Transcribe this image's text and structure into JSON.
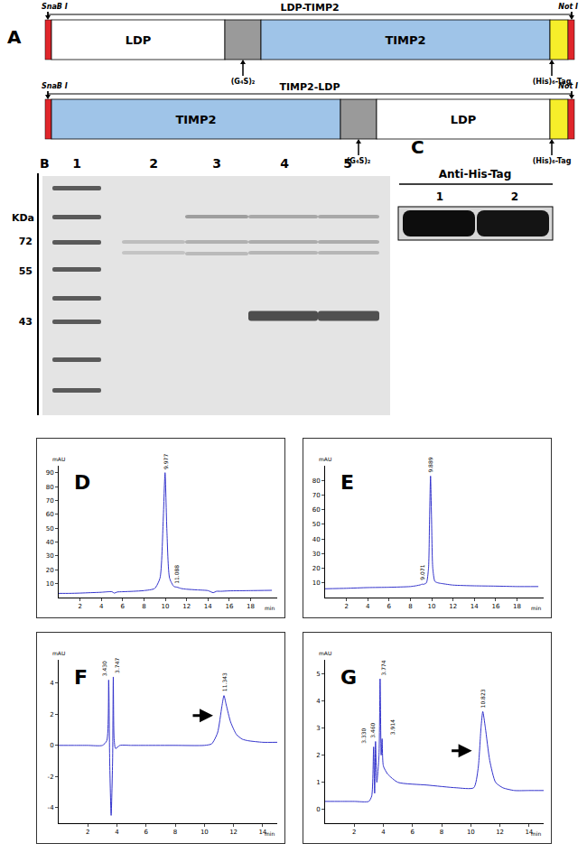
{
  "panel_a": {
    "label": "A",
    "constructs": [
      {
        "name": "LDP-TIMP2",
        "site_left": "SnaB I",
        "site_right": "Not I",
        "segments": [
          {
            "name": "LDP",
            "color": "#ffffff"
          },
          {
            "name": "TIMP2",
            "color": "#9fc4e8"
          }
        ],
        "linker": "(G₄S)₂",
        "tag": "(His)₆-Tag"
      },
      {
        "name": "TIMP2-LDP",
        "site_left": "SnaB I",
        "site_right": "Not I",
        "segments": [
          {
            "name": "TIMP2",
            "color": "#9fc4e8"
          },
          {
            "name": "LDP",
            "color": "#ffffff"
          }
        ],
        "linker": "(G₄S)₂",
        "tag": "(His)₆-Tag"
      }
    ]
  },
  "panel_b": {
    "label": "B",
    "lanes": [
      "1",
      "2",
      "3",
      "4",
      "5"
    ],
    "unit": "KDa",
    "marker_ticks": [
      72,
      55,
      43
    ]
  },
  "panel_c": {
    "label": "C",
    "title": "Anti-His-Tag",
    "lanes": [
      "1",
      "2"
    ]
  },
  "chart_data": [
    {
      "label": "D",
      "type": "line",
      "color": "#3333cc",
      "x": [
        0,
        1,
        2,
        3,
        4,
        5,
        5.2,
        5.5,
        6,
        7,
        8,
        9,
        9.5,
        9.8,
        9.977,
        10.15,
        10.4,
        10.8,
        11.088,
        11.5,
        12,
        13,
        14,
        14.5,
        14.8,
        15.2,
        16,
        18,
        20
      ],
      "values": [
        3,
        3,
        3.2,
        3.5,
        3.8,
        4.2,
        3.2,
        4,
        4.2,
        4.5,
        5,
        6.5,
        14,
        55,
        90,
        48,
        14,
        8,
        7.5,
        6.5,
        6,
        5.5,
        5,
        3.5,
        4.5,
        4.5,
        4.8,
        5,
        5.2
      ],
      "xlim": [
        0,
        20.5
      ],
      "xticks": [
        2,
        4,
        6,
        8,
        10,
        12,
        14,
        16,
        18
      ],
      "ylim": [
        0,
        95
      ],
      "yticks": [
        10,
        20,
        30,
        40,
        50,
        60,
        70,
        80,
        90
      ],
      "x_label": "min",
      "y_label": "mAU",
      "grid": false,
      "annotations": [
        {
          "x": 9.977,
          "y": 90,
          "text": "9.977"
        },
        {
          "x": 11.088,
          "y": 7.5,
          "text": "11.088"
        }
      ]
    },
    {
      "label": "E",
      "type": "line",
      "color": "#3333cc",
      "x": [
        0,
        2,
        4,
        6,
        8,
        8.5,
        9,
        9.071,
        9.2,
        9.5,
        9.7,
        9.8,
        9.889,
        9.98,
        10.1,
        10.3,
        10.6,
        11,
        12,
        14,
        16,
        18,
        20
      ],
      "values": [
        6,
        6.3,
        6.8,
        7,
        7.5,
        8,
        8.8,
        9.2,
        9,
        10,
        20,
        55,
        83,
        55,
        20,
        11,
        10,
        9.5,
        8.5,
        8,
        7.8,
        7.5,
        7.5
      ],
      "xlim": [
        0,
        20.5
      ],
      "xticks": [
        2,
        4,
        6,
        8,
        10,
        12,
        14,
        16,
        18
      ],
      "ylim": [
        0,
        90
      ],
      "yticks": [
        10,
        20,
        30,
        40,
        50,
        60,
        70,
        80
      ],
      "x_label": "min",
      "y_label": "mAU",
      "grid": false,
      "annotations": [
        {
          "x": 9.071,
          "y": 9.2,
          "text": "9.071"
        },
        {
          "x": 9.889,
          "y": 83,
          "text": "9.889"
        }
      ]
    },
    {
      "label": "F",
      "type": "line",
      "color": "#3333cc",
      "x": [
        0,
        1,
        2,
        3,
        3.3,
        3.43,
        3.5,
        3.6,
        3.7,
        3.747,
        3.8,
        3.9,
        4.2,
        5,
        6,
        8,
        10,
        10.5,
        10.9,
        11.2,
        11.343,
        11.5,
        11.8,
        12.2,
        12.6,
        13,
        14,
        15
      ],
      "values": [
        0,
        0,
        0,
        0,
        0.3,
        4.2,
        -1,
        -4.5,
        -1,
        4.4,
        0.5,
        -0.2,
        0,
        0,
        0,
        0,
        0,
        0.1,
        0.8,
        2.5,
        3.2,
        2.6,
        1.5,
        0.7,
        0.4,
        0.3,
        0.2,
        0.2
      ],
      "xlim": [
        0,
        15
      ],
      "xticks": [
        2,
        4,
        6,
        8,
        10,
        12,
        14
      ],
      "ylim": [
        -5,
        5.5
      ],
      "yticks": [
        -4,
        -2,
        0,
        2,
        4
      ],
      "x_label": "min",
      "y_label": "mAU",
      "grid": false,
      "annotations": [
        {
          "x": 3.43,
          "y": 4.2,
          "text": "3.430"
        },
        {
          "x": 3.747,
          "y": 4.4,
          "text": "3.747"
        },
        {
          "x": 11.343,
          "y": 3.2,
          "text": "11.343",
          "marker": "arrow"
        }
      ]
    },
    {
      "label": "G",
      "type": "line",
      "color": "#3333cc",
      "x": [
        0,
        1,
        2,
        3,
        3.2,
        3.33,
        3.4,
        3.46,
        3.55,
        3.7,
        3.774,
        3.85,
        3.914,
        4.0,
        4.3,
        5,
        7,
        9,
        10.2,
        10.5,
        10.7,
        10.823,
        11,
        11.3,
        11.7,
        12.2,
        13,
        14,
        15
      ],
      "values": [
        0.3,
        0.3,
        0.3,
        0.3,
        0.5,
        2.3,
        0.6,
        2.5,
        1,
        2,
        4.8,
        2,
        2.6,
        1.6,
        1.3,
        1,
        0.9,
        0.8,
        0.8,
        1.5,
        3,
        3.6,
        3,
        1.8,
        1,
        0.8,
        0.7,
        0.7,
        0.7
      ],
      "xlim": [
        0,
        15
      ],
      "xticks": [
        2,
        4,
        6,
        8,
        10,
        12,
        14
      ],
      "ylim": [
        -0.5,
        5.5
      ],
      "yticks": [
        0,
        1,
        2,
        3,
        4,
        5
      ],
      "x_label": "min",
      "y_label": "mAU",
      "grid": false,
      "annotations": [
        {
          "x": 3.33,
          "y": 2.3,
          "text": "3.330"
        },
        {
          "x": 3.46,
          "y": 2.5,
          "text": "3.460"
        },
        {
          "x": 3.774,
          "y": 4.8,
          "text": "3.774"
        },
        {
          "x": 3.914,
          "y": 2.6,
          "text": "3.914"
        },
        {
          "x": 10.823,
          "y": 3.6,
          "text": "10.823",
          "marker": "arrow"
        }
      ]
    }
  ]
}
